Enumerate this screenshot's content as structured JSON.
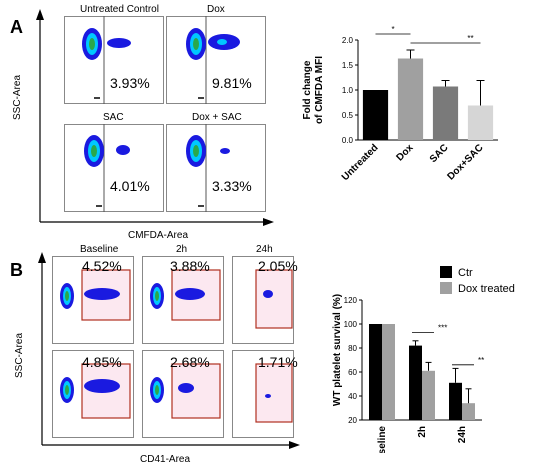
{
  "panel_a": {
    "letter": "A",
    "flow": {
      "titles": [
        "Untreated Control",
        "Dox",
        "SAC",
        "Dox + SAC"
      ],
      "percentages": [
        "3.93%",
        "9.81%",
        "4.01%",
        "3.33%"
      ],
      "y_axis_label": "SSC-Area",
      "x_axis_label": "CMFDA-Area"
    }
  },
  "panel_b": {
    "letter": "B",
    "flow": {
      "titles": [
        "Baseline",
        "2h",
        "24h"
      ],
      "percentages": [
        "4.52%",
        "3.88%",
        "2.05%",
        "4.85%",
        "2.68%",
        "1.71%"
      ],
      "y_axis_label": "SSC-Area",
      "x_axis_label": "CD41-Area"
    }
  },
  "colors": {
    "gate_line_a": "#555555",
    "gate_box_b": "#b03020",
    "dot_core": "#2aa84a",
    "dot_mid": "#00c8ff",
    "dot_outer": "#1a1ae0"
  },
  "chart_data": [
    {
      "type": "bar",
      "categories": [
        "Untreated",
        "Dox",
        "SAC",
        "Dox+SAC"
      ],
      "values": [
        1.0,
        1.63,
        1.07,
        0.69
      ],
      "errors": [
        0,
        0.17,
        0.12,
        0.5
      ],
      "bar_colors": [
        "#000000",
        "#a0a0a0",
        "#7a7a7a",
        "#d6d6d6"
      ],
      "ylabel_lines": [
        "Fold change",
        "of CMFDA MFI"
      ],
      "ylim": [
        0,
        2.0
      ],
      "yticks": [
        "0.0",
        "0.5",
        "1.0",
        "1.5",
        "2.0"
      ],
      "significance": [
        {
          "from": 0,
          "to": 1,
          "label": "*"
        },
        {
          "from": 1,
          "to": 3,
          "label": "**"
        }
      ],
      "grid": false
    },
    {
      "type": "bar",
      "categories": [
        "Baseline",
        "2h",
        "24h"
      ],
      "series": [
        {
          "name": "Ctr",
          "color": "#000000",
          "values": [
            100,
            82,
            51
          ],
          "errors": [
            0,
            4,
            12
          ]
        },
        {
          "name": "Dox treated",
          "color": "#a0a0a0",
          "values": [
            100,
            61,
            34
          ],
          "errors": [
            0,
            7,
            12
          ]
        }
      ],
      "ylabel": "WT platelet survival (%)",
      "ylim": [
        20,
        120
      ],
      "yticks": [
        "20",
        "40",
        "60",
        "80",
        "100",
        "120"
      ],
      "significance": [
        {
          "category": 1,
          "label": "***"
        },
        {
          "category": 2,
          "label": "**"
        }
      ],
      "legend": "top-right",
      "grid": false
    }
  ]
}
